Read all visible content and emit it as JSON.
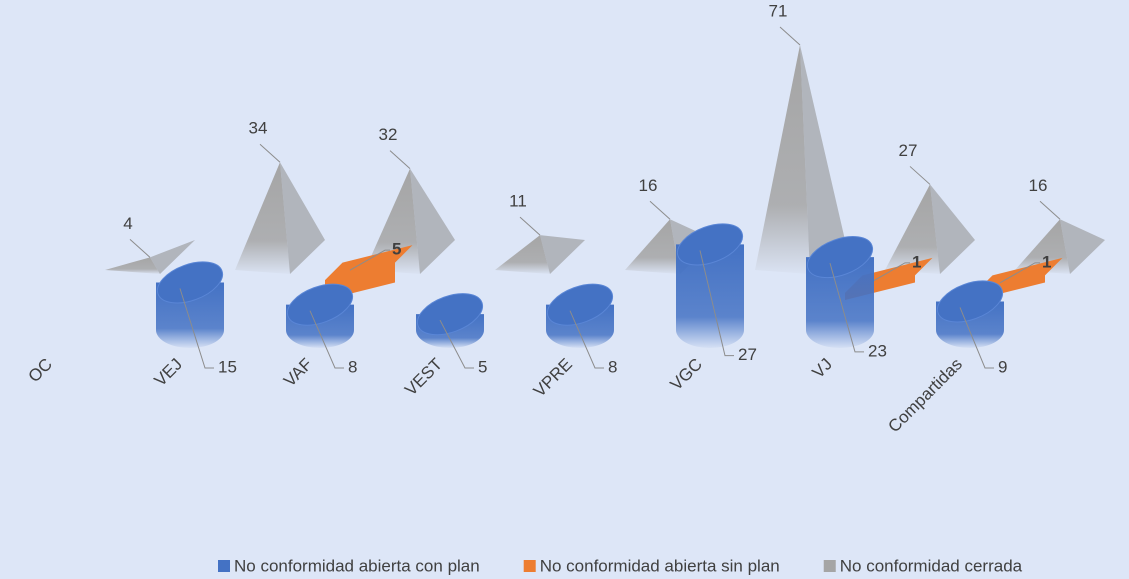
{
  "chart_data": {
    "type": "bar3d",
    "categories": [
      "OC",
      "VEJ",
      "VAF",
      "VEST",
      "VPRE",
      "VGC",
      "VJ",
      "Compartidas"
    ],
    "series": [
      {
        "name": "No conformidad abierta con plan",
        "color": "#4472c4",
        "values": [
          null,
          15,
          8,
          5,
          8,
          27,
          23,
          9
        ]
      },
      {
        "name": "No conformidad abierta sin plan",
        "color": "#ed7d31",
        "values": [
          null,
          null,
          5,
          null,
          null,
          null,
          1,
          1
        ]
      },
      {
        "name": "No conformidad cerrada",
        "color": "#a5a5a5",
        "values": [
          4,
          34,
          32,
          11,
          16,
          71,
          27,
          16
        ]
      }
    ],
    "legend": "bottom"
  }
}
